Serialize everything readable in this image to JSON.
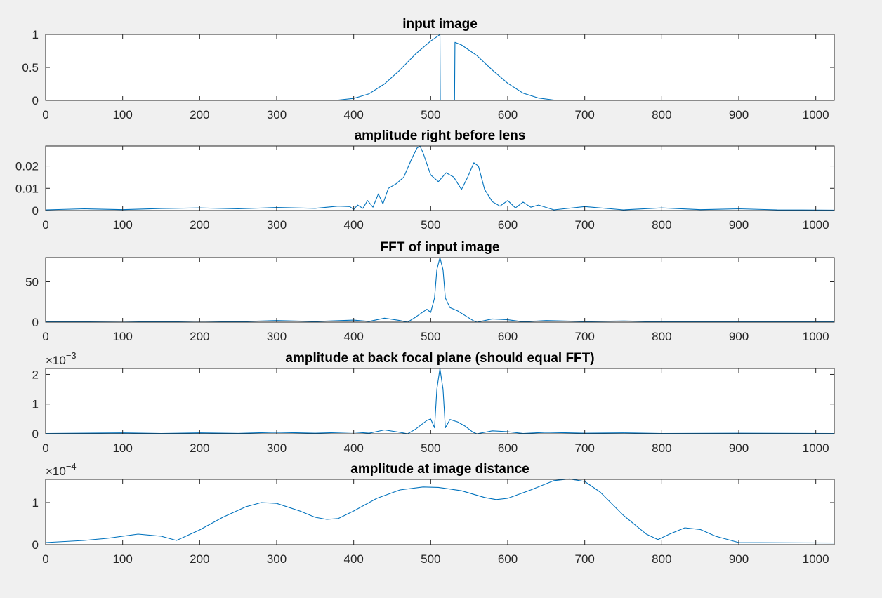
{
  "figure": {
    "background": "#f0f0f0",
    "line_color": "#0072bd",
    "axes_color": "#262626"
  },
  "chart_data": [
    {
      "type": "line",
      "title": "input image",
      "xlim": [
        0,
        1024
      ],
      "ylim": [
        0,
        1
      ],
      "xticks": [
        0,
        100,
        200,
        300,
        400,
        500,
        600,
        700,
        800,
        900,
        1000
      ],
      "yticks": [
        0,
        0.5,
        1
      ],
      "ytick_labels": [
        "0",
        "0.5",
        "1"
      ],
      "exponent": "",
      "series": [
        {
          "x": [
            0,
            380,
            400,
            420,
            440,
            460,
            480,
            500,
            510,
            512,
            512.5,
            531,
            531.5,
            540,
            560,
            580,
            600,
            620,
            640,
            660,
            1024
          ],
          "y": [
            0,
            0.005,
            0.03,
            0.1,
            0.25,
            0.46,
            0.7,
            0.9,
            0.98,
            1,
            0,
            0,
            0.88,
            0.84,
            0.68,
            0.46,
            0.26,
            0.11,
            0.035,
            0.005,
            0
          ]
        }
      ]
    },
    {
      "type": "line",
      "title": "amplitude right before lens",
      "xlim": [
        0,
        1024
      ],
      "ylim": [
        0,
        0.029
      ],
      "xticks": [
        0,
        100,
        200,
        300,
        400,
        500,
        600,
        700,
        800,
        900,
        1000
      ],
      "yticks": [
        0,
        0.01,
        0.02
      ],
      "ytick_labels": [
        "0",
        "0.01",
        "0.02"
      ],
      "exponent": "",
      "series": [
        {
          "x": [
            0,
            50,
            100,
            150,
            200,
            250,
            300,
            350,
            380,
            395,
            400,
            405,
            412,
            418,
            425,
            432,
            438,
            445,
            455,
            465,
            475,
            482,
            486,
            490,
            500,
            510,
            520,
            530,
            540,
            548,
            556,
            562,
            570,
            580,
            590,
            600,
            610,
            620,
            630,
            640,
            660,
            700,
            750,
            800,
            850,
            900,
            950,
            1024
          ],
          "y": [
            0.0003,
            0.0008,
            0.0004,
            0.0009,
            0.0012,
            0.0008,
            0.0014,
            0.001,
            0.002,
            0.0018,
            0.0005,
            0.0025,
            0.001,
            0.0045,
            0.0015,
            0.0075,
            0.003,
            0.01,
            0.012,
            0.015,
            0.023,
            0.028,
            0.029,
            0.026,
            0.016,
            0.013,
            0.017,
            0.015,
            0.0095,
            0.015,
            0.0215,
            0.02,
            0.0095,
            0.004,
            0.002,
            0.0045,
            0.0012,
            0.0038,
            0.0015,
            0.0025,
            0.0003,
            0.0018,
            0.0003,
            0.0012,
            0.0004,
            0.0008,
            0.0003,
            0.0002
          ]
        }
      ]
    },
    {
      "type": "line",
      "title": "FFT of input image",
      "xlim": [
        0,
        1024
      ],
      "ylim": [
        0,
        80
      ],
      "xticks": [
        0,
        100,
        200,
        300,
        400,
        500,
        600,
        700,
        800,
        900,
        1000
      ],
      "yticks": [
        0,
        50
      ],
      "ytick_labels": [
        "0",
        "50"
      ],
      "exponent": "",
      "series": [
        {
          "x": [
            0,
            100,
            150,
            200,
            250,
            300,
            350,
            400,
            420,
            440,
            460,
            470,
            480,
            495,
            500,
            505,
            508,
            512,
            516,
            519,
            525,
            535,
            545,
            555,
            560,
            580,
            600,
            620,
            650,
            700,
            750,
            800,
            900,
            1024
          ],
          "y": [
            0.5,
            1.2,
            0.5,
            1.3,
            0.6,
            2,
            0.8,
            2.5,
            1,
            5,
            2,
            0,
            6,
            16,
            12,
            30,
            65,
            80,
            65,
            30,
            18,
            14,
            8,
            2,
            0,
            4,
            3,
            0.5,
            2,
            0.8,
            1.5,
            0.5,
            1,
            0.5
          ]
        }
      ]
    },
    {
      "type": "line",
      "title": "amplitude at back focal plane (should equal FFT)",
      "xlim": [
        0,
        1024
      ],
      "ylim": [
        0,
        2.2
      ],
      "xticks": [
        0,
        100,
        200,
        300,
        400,
        500,
        600,
        700,
        800,
        900,
        1000
      ],
      "yticks": [
        0,
        1,
        2
      ],
      "ytick_labels": [
        "0",
        "1",
        "2"
      ],
      "exponent": "−3",
      "series": [
        {
          "x": [
            0,
            100,
            150,
            200,
            250,
            300,
            350,
            400,
            420,
            440,
            460,
            470,
            480,
            495,
            500,
            505,
            508,
            512,
            516,
            519,
            525,
            535,
            545,
            555,
            560,
            580,
            600,
            620,
            650,
            700,
            750,
            800,
            900,
            1024
          ],
          "y": [
            0.01,
            0.03,
            0.01,
            0.03,
            0.015,
            0.05,
            0.02,
            0.06,
            0.02,
            0.13,
            0.05,
            0,
            0.15,
            0.45,
            0.5,
            0.2,
            1.5,
            2.2,
            1.5,
            0.2,
            0.48,
            0.4,
            0.25,
            0.05,
            0,
            0.1,
            0.07,
            0.01,
            0.05,
            0.02,
            0.03,
            0.01,
            0.02,
            0.01
          ]
        }
      ]
    },
    {
      "type": "line",
      "title": "amplitude at image distance",
      "xlim": [
        0,
        1024
      ],
      "ylim": [
        0,
        1.55
      ],
      "xticks": [
        0,
        100,
        200,
        300,
        400,
        500,
        600,
        700,
        800,
        900,
        1000
      ],
      "yticks": [
        0,
        1
      ],
      "ytick_labels": [
        "0",
        "1"
      ],
      "exponent": "−4",
      "series": [
        {
          "x": [
            0,
            50,
            80,
            120,
            150,
            170,
            200,
            230,
            260,
            280,
            300,
            330,
            350,
            365,
            380,
            400,
            430,
            460,
            490,
            510,
            540,
            570,
            585,
            600,
            630,
            660,
            680,
            700,
            720,
            750,
            780,
            795,
            810,
            830,
            850,
            870,
            900,
            1024
          ],
          "y": [
            0.05,
            0.1,
            0.15,
            0.25,
            0.2,
            0.1,
            0.35,
            0.65,
            0.9,
            1,
            0.98,
            0.8,
            0.65,
            0.6,
            0.62,
            0.8,
            1.1,
            1.3,
            1.37,
            1.36,
            1.28,
            1.12,
            1.07,
            1.1,
            1.3,
            1.52,
            1.56,
            1.5,
            1.25,
            0.7,
            0.25,
            0.12,
            0.25,
            0.4,
            0.36,
            0.2,
            0.05,
            0.04
          ]
        }
      ]
    }
  ]
}
